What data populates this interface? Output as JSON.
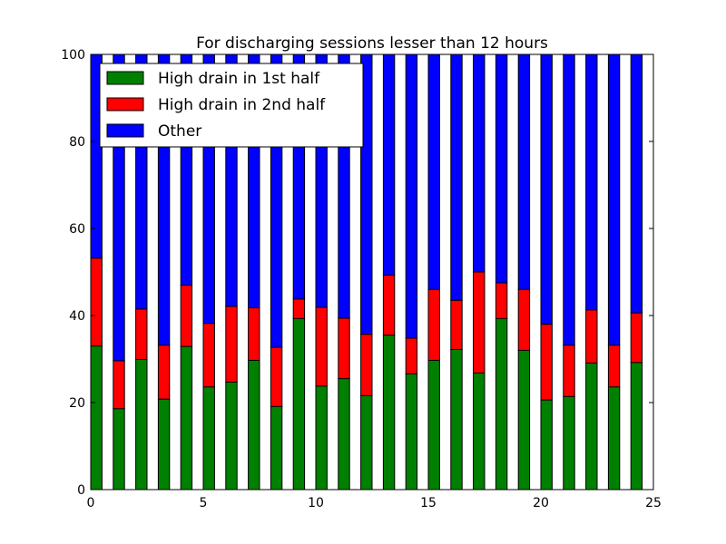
{
  "chart_data": {
    "type": "bar",
    "stacked": true,
    "title": "For discharging sessions lesser than 12 hours",
    "xlabel": "",
    "ylabel": "",
    "xlim": [
      0,
      25
    ],
    "ylim": [
      0,
      100
    ],
    "x_ticks": [
      0,
      5,
      10,
      15,
      20,
      25
    ],
    "x_tick_labels": [
      "0",
      "5",
      "10",
      "15",
      "20",
      "25"
    ],
    "y_ticks": [
      0,
      20,
      40,
      60,
      80,
      100
    ],
    "y_tick_labels": [
      "0",
      "20",
      "40",
      "60",
      "80",
      "100"
    ],
    "grid": false,
    "legend": "upper-left",
    "bar_width": 0.5,
    "x": [
      0,
      1,
      2,
      3,
      4,
      5,
      6,
      7,
      8,
      9,
      10,
      11,
      12,
      13,
      14,
      15,
      16,
      17,
      18,
      19,
      20,
      21,
      22,
      23,
      24
    ],
    "series": [
      {
        "name": "High drain in 1st half",
        "color": "#008000",
        "values": [
          33.0,
          18.6,
          29.9,
          20.8,
          32.9,
          23.6,
          24.7,
          29.7,
          19.1,
          39.3,
          23.8,
          25.5,
          21.6,
          35.5,
          26.6,
          29.7,
          32.2,
          26.8,
          39.3,
          32.0,
          20.6,
          21.4,
          29.1,
          23.6,
          29.2
        ]
      },
      {
        "name": "High drain in 2nd half",
        "color": "#ff0000",
        "values": [
          20.2,
          11.0,
          11.6,
          12.4,
          14.1,
          14.6,
          17.4,
          12.1,
          13.6,
          4.5,
          18.1,
          13.9,
          14.1,
          13.8,
          8.2,
          16.3,
          11.3,
          23.2,
          8.2,
          14.0,
          17.4,
          11.8,
          12.2,
          9.6,
          11.4
        ]
      },
      {
        "name": "Other",
        "color": "#0000ff",
        "values": [
          46.8,
          70.4,
          58.5,
          66.8,
          53.0,
          61.8,
          57.9,
          58.2,
          67.3,
          56.2,
          58.1,
          60.6,
          64.3,
          50.7,
          65.2,
          54.0,
          56.5,
          50.0,
          52.5,
          54.0,
          62.0,
          66.8,
          58.7,
          66.8,
          59.4
        ]
      }
    ]
  }
}
